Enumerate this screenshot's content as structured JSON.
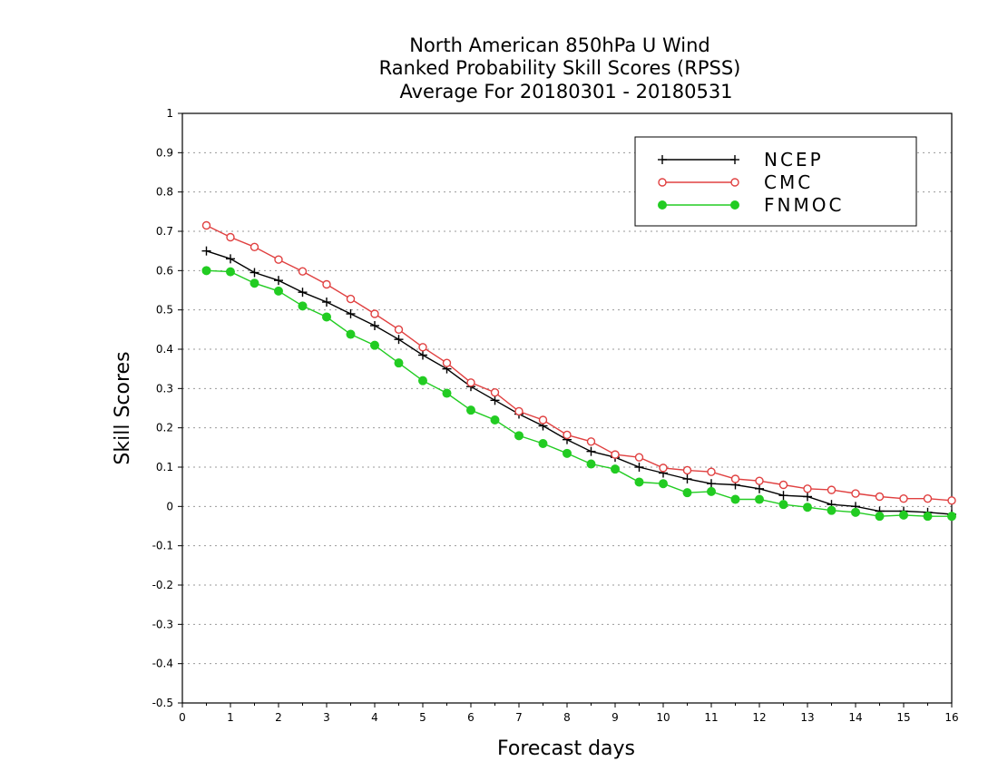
{
  "chart_data": {
    "type": "line",
    "title": [
      "North American 850hPa U Wind",
      "Ranked Probability Skill Scores (RPSS)",
      "Average For 20180301 - 20180531"
    ],
    "xlabel": "Forecast days",
    "ylabel": "Skill Scores",
    "xlim": [
      0,
      16
    ],
    "ylim": [
      -0.5,
      1
    ],
    "xticks": [
      "0",
      "1",
      "2",
      "3",
      "4",
      "5",
      "6",
      "7",
      "8",
      "9",
      "10",
      "11",
      "12",
      "13",
      "14",
      "15",
      "16"
    ],
    "yticks": [
      "-0.5",
      "-0.4",
      "-0.3",
      "-0.2",
      "-0.1",
      "0",
      "0.1",
      "0.2",
      "0.3",
      "0.4",
      "0.5",
      "0.6",
      "0.7",
      "0.8",
      "0.9",
      "1"
    ],
    "grid": true,
    "legend_position": "top-right",
    "x": [
      0.5,
      1,
      1.5,
      2,
      2.5,
      3,
      3.5,
      4,
      4.5,
      5,
      5.5,
      6,
      6.5,
      7,
      7.5,
      8,
      8.5,
      9,
      9.5,
      10,
      10.5,
      11,
      11.5,
      12,
      12.5,
      13,
      13.5,
      14,
      14.5,
      15,
      15.5,
      16
    ],
    "series": [
      {
        "name": "NCEP",
        "color": "#000000",
        "marker": "plus",
        "values": [
          0.65,
          0.63,
          0.595,
          0.575,
          0.545,
          0.52,
          0.49,
          0.46,
          0.425,
          0.385,
          0.35,
          0.305,
          0.27,
          0.235,
          0.205,
          0.17,
          0.14,
          0.125,
          0.1,
          0.085,
          0.07,
          0.058,
          0.055,
          0.045,
          0.028,
          0.025,
          0.005,
          0.0,
          -0.012,
          -0.012,
          -0.015,
          -0.02
        ]
      },
      {
        "name": "CMC",
        "color": "#e04040",
        "marker": "open-circle",
        "values": [
          0.715,
          0.685,
          0.66,
          0.628,
          0.598,
          0.565,
          0.528,
          0.49,
          0.45,
          0.405,
          0.365,
          0.315,
          0.29,
          0.242,
          0.22,
          0.182,
          0.165,
          0.132,
          0.125,
          0.098,
          0.092,
          0.088,
          0.07,
          0.065,
          0.055,
          0.045,
          0.042,
          0.033,
          0.025,
          0.02,
          0.02,
          0.015
        ]
      },
      {
        "name": "FNMOC",
        "color": "#22cc22",
        "marker": "filled-circle",
        "values": [
          0.6,
          0.597,
          0.568,
          0.548,
          0.51,
          0.482,
          0.438,
          0.41,
          0.365,
          0.32,
          0.288,
          0.245,
          0.22,
          0.18,
          0.16,
          0.135,
          0.108,
          0.095,
          0.062,
          0.058,
          0.035,
          0.038,
          0.018,
          0.018,
          0.005,
          -0.002,
          -0.01,
          -0.015,
          -0.025,
          -0.022,
          -0.025,
          -0.025
        ]
      }
    ]
  }
}
